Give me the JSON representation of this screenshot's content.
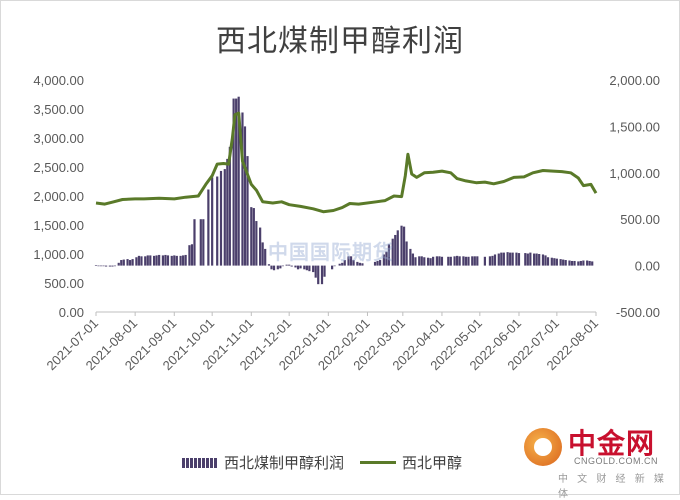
{
  "chart_data": {
    "type": "bar+line",
    "title": "西北煤制甲醇利润",
    "left_axis": {
      "min": 0,
      "max": 4000,
      "ticks": [
        "0.00",
        "500.00",
        "1,000.00",
        "1,500.00",
        "2,000.00",
        "2,500.00",
        "3,000.00",
        "3,500.00",
        "4,000.00"
      ]
    },
    "right_axis": {
      "min": -500,
      "max": 2000,
      "ticks": [
        "-500.00",
        "0.00",
        "500.00",
        "1,000.00",
        "1,500.00",
        "2,000.00"
      ]
    },
    "x_ticks": [
      "2021-07-01",
      "2021-08-01",
      "2021-09-01",
      "2021-10-01",
      "2021-11-01",
      "2021-12-01",
      "2022-01-01",
      "2022-02-01",
      "2022-03-01",
      "2022-04-01",
      "2022-05-01",
      "2022-06-01",
      "2022-07-01",
      "2022-08-01"
    ],
    "x_range": [
      "2021-07-01",
      "2022-08-01"
    ],
    "gridlines": false,
    "legend_position": "bottom",
    "series": [
      {
        "name": "西北煤制甲醇利润",
        "kind": "bar",
        "axis": "right",
        "color": "#4b3f6b",
        "points": [
          [
            "2021-07-01",
            5
          ],
          [
            "2021-07-03",
            0
          ],
          [
            "2021-07-05",
            -5
          ],
          [
            "2021-07-07",
            0
          ],
          [
            "2021-07-09",
            -10
          ],
          [
            "2021-07-12",
            -10
          ],
          [
            "2021-07-14",
            -10
          ],
          [
            "2021-07-16",
            -5
          ],
          [
            "2021-07-19",
            30
          ],
          [
            "2021-07-21",
            60
          ],
          [
            "2021-07-23",
            65
          ],
          [
            "2021-07-26",
            70
          ],
          [
            "2021-07-28",
            60
          ],
          [
            "2021-07-30",
            70
          ],
          [
            "2021-08-02",
            90
          ],
          [
            "2021-08-04",
            105
          ],
          [
            "2021-08-06",
            100
          ],
          [
            "2021-08-09",
            100
          ],
          [
            "2021-08-11",
            110
          ],
          [
            "2021-08-13",
            110
          ],
          [
            "2021-08-16",
            105
          ],
          [
            "2021-08-18",
            110
          ],
          [
            "2021-08-20",
            115
          ],
          [
            "2021-08-23",
            110
          ],
          [
            "2021-08-25",
            115
          ],
          [
            "2021-08-27",
            110
          ],
          [
            "2021-08-30",
            105
          ],
          [
            "2021-09-01",
            110
          ],
          [
            "2021-09-03",
            105
          ],
          [
            "2021-09-06",
            105
          ],
          [
            "2021-09-08",
            110
          ],
          [
            "2021-09-10",
            115
          ],
          [
            "2021-09-13",
            220
          ],
          [
            "2021-09-15",
            230
          ],
          [
            "2021-09-17",
            500
          ],
          [
            "2021-09-22",
            500
          ],
          [
            "2021-09-24",
            500
          ],
          [
            "2021-09-28",
            820
          ],
          [
            "2021-10-01",
            950
          ],
          [
            "2021-10-05",
            960
          ],
          [
            "2021-10-08",
            1020
          ],
          [
            "2021-10-11",
            1040
          ],
          [
            "2021-10-13",
            1150
          ],
          [
            "2021-10-15",
            1280
          ],
          [
            "2021-10-18",
            1800
          ],
          [
            "2021-10-20",
            1800
          ],
          [
            "2021-10-22",
            1820
          ],
          [
            "2021-10-25",
            1650
          ],
          [
            "2021-10-27",
            1500
          ],
          [
            "2021-10-29",
            1180
          ],
          [
            "2021-11-01",
            630
          ],
          [
            "2021-11-03",
            620
          ],
          [
            "2021-11-05",
            480
          ],
          [
            "2021-11-08",
            410
          ],
          [
            "2021-11-10",
            250
          ],
          [
            "2021-11-12",
            180
          ],
          [
            "2021-11-15",
            15
          ],
          [
            "2021-11-17",
            -40
          ],
          [
            "2021-11-19",
            -50
          ],
          [
            "2021-11-22",
            -40
          ],
          [
            "2021-11-24",
            -30
          ],
          [
            "2021-11-26",
            0
          ],
          [
            "2021-11-29",
            10
          ],
          [
            "2021-12-01",
            10
          ],
          [
            "2021-12-03",
            -10
          ],
          [
            "2021-12-06",
            -20
          ],
          [
            "2021-12-08",
            -40
          ],
          [
            "2021-12-10",
            -30
          ],
          [
            "2021-12-13",
            -40
          ],
          [
            "2021-12-15",
            -50
          ],
          [
            "2021-12-17",
            -60
          ],
          [
            "2021-12-20",
            -70
          ],
          [
            "2021-12-22",
            -130
          ],
          [
            "2021-12-24",
            -200
          ],
          [
            "2021-12-27",
            -200
          ],
          [
            "2021-12-29",
            -120
          ],
          [
            "2022-01-04",
            -40
          ],
          [
            "2022-01-06",
            0
          ],
          [
            "2022-01-10",
            20
          ],
          [
            "2022-01-12",
            30
          ],
          [
            "2022-01-14",
            60
          ],
          [
            "2022-01-17",
            100
          ],
          [
            "2022-01-19",
            100
          ],
          [
            "2022-01-21",
            60
          ],
          [
            "2022-01-24",
            40
          ],
          [
            "2022-01-26",
            30
          ],
          [
            "2022-01-28",
            25
          ],
          [
            "2022-02-07",
            40
          ],
          [
            "2022-02-09",
            50
          ],
          [
            "2022-02-11",
            60
          ],
          [
            "2022-02-14",
            120
          ],
          [
            "2022-02-16",
            150
          ],
          [
            "2022-02-18",
            230
          ],
          [
            "2022-02-21",
            290
          ],
          [
            "2022-02-23",
            330
          ],
          [
            "2022-02-25",
            380
          ],
          [
            "2022-02-28",
            430
          ],
          [
            "2022-03-02",
            420
          ],
          [
            "2022-03-04",
            260
          ],
          [
            "2022-03-07",
            180
          ],
          [
            "2022-03-09",
            130
          ],
          [
            "2022-03-11",
            90
          ],
          [
            "2022-03-14",
            100
          ],
          [
            "2022-03-16",
            100
          ],
          [
            "2022-03-18",
            90
          ],
          [
            "2022-03-21",
            85
          ],
          [
            "2022-03-23",
            80
          ],
          [
            "2022-03-25",
            95
          ],
          [
            "2022-03-28",
            100
          ],
          [
            "2022-03-30",
            100
          ],
          [
            "2022-04-01",
            95
          ],
          [
            "2022-04-06",
            95
          ],
          [
            "2022-04-08",
            95
          ],
          [
            "2022-04-11",
            100
          ],
          [
            "2022-04-13",
            105
          ],
          [
            "2022-04-15",
            100
          ],
          [
            "2022-04-18",
            100
          ],
          [
            "2022-04-20",
            95
          ],
          [
            "2022-04-22",
            95
          ],
          [
            "2022-04-25",
            100
          ],
          [
            "2022-04-27",
            100
          ],
          [
            "2022-04-29",
            100
          ],
          [
            "2022-05-05",
            95
          ],
          [
            "2022-05-09",
            100
          ],
          [
            "2022-05-11",
            105
          ],
          [
            "2022-05-13",
            120
          ],
          [
            "2022-05-16",
            130
          ],
          [
            "2022-05-18",
            140
          ],
          [
            "2022-05-20",
            140
          ],
          [
            "2022-05-23",
            145
          ],
          [
            "2022-05-25",
            140
          ],
          [
            "2022-05-27",
            140
          ],
          [
            "2022-05-30",
            140
          ],
          [
            "2022-06-01",
            135
          ],
          [
            "2022-06-06",
            135
          ],
          [
            "2022-06-08",
            130
          ],
          [
            "2022-06-10",
            140
          ],
          [
            "2022-06-13",
            130
          ],
          [
            "2022-06-15",
            130
          ],
          [
            "2022-06-17",
            125
          ],
          [
            "2022-06-20",
            120
          ],
          [
            "2022-06-22",
            110
          ],
          [
            "2022-06-24",
            90
          ],
          [
            "2022-06-27",
            85
          ],
          [
            "2022-06-29",
            80
          ],
          [
            "2022-07-01",
            75
          ],
          [
            "2022-07-04",
            70
          ],
          [
            "2022-07-06",
            65
          ],
          [
            "2022-07-08",
            60
          ],
          [
            "2022-07-11",
            55
          ],
          [
            "2022-07-13",
            50
          ],
          [
            "2022-07-15",
            50
          ],
          [
            "2022-07-18",
            45
          ],
          [
            "2022-07-20",
            50
          ],
          [
            "2022-07-22",
            55
          ],
          [
            "2022-07-25",
            55
          ],
          [
            "2022-07-27",
            50
          ],
          [
            "2022-07-29",
            45
          ]
        ]
      },
      {
        "name": "西北甲醇",
        "kind": "line",
        "axis": "left",
        "color": "#5a7a29",
        "points": [
          [
            "2021-07-01",
            1880
          ],
          [
            "2021-07-08",
            1860
          ],
          [
            "2021-07-15",
            1900
          ],
          [
            "2021-07-22",
            1940
          ],
          [
            "2021-08-01",
            1950
          ],
          [
            "2021-08-08",
            1950
          ],
          [
            "2021-08-20",
            1960
          ],
          [
            "2021-09-01",
            1950
          ],
          [
            "2021-09-10",
            1980
          ],
          [
            "2021-09-20",
            2000
          ],
          [
            "2021-09-26",
            2200
          ],
          [
            "2021-10-01",
            2350
          ],
          [
            "2021-10-05",
            2550
          ],
          [
            "2021-10-10",
            2560
          ],
          [
            "2021-10-14",
            2550
          ],
          [
            "2021-10-17",
            3000
          ],
          [
            "2021-10-19",
            3400
          ],
          [
            "2021-10-22",
            3430
          ],
          [
            "2021-10-25",
            2600
          ],
          [
            "2021-11-01",
            2200
          ],
          [
            "2021-11-05",
            2100
          ],
          [
            "2021-11-10",
            1900
          ],
          [
            "2021-11-18",
            1880
          ],
          [
            "2021-11-25",
            1900
          ],
          [
            "2021-12-01",
            1850
          ],
          [
            "2021-12-10",
            1820
          ],
          [
            "2021-12-20",
            1780
          ],
          [
            "2021-12-28",
            1730
          ],
          [
            "2022-01-05",
            1750
          ],
          [
            "2022-01-12",
            1800
          ],
          [
            "2022-01-18",
            1870
          ],
          [
            "2022-01-25",
            1860
          ],
          [
            "2022-02-08",
            1900
          ],
          [
            "2022-02-15",
            1920
          ],
          [
            "2022-02-22",
            2000
          ],
          [
            "2022-02-28",
            1990
          ],
          [
            "2022-03-03",
            2350
          ],
          [
            "2022-03-05",
            2720
          ],
          [
            "2022-03-08",
            2380
          ],
          [
            "2022-03-12",
            2320
          ],
          [
            "2022-03-18",
            2400
          ],
          [
            "2022-03-25",
            2410
          ],
          [
            "2022-04-01",
            2430
          ],
          [
            "2022-04-08",
            2400
          ],
          [
            "2022-04-13",
            2300
          ],
          [
            "2022-04-20",
            2260
          ],
          [
            "2022-04-28",
            2230
          ],
          [
            "2022-05-05",
            2240
          ],
          [
            "2022-05-12",
            2210
          ],
          [
            "2022-05-20",
            2250
          ],
          [
            "2022-05-28",
            2320
          ],
          [
            "2022-06-05",
            2330
          ],
          [
            "2022-06-12",
            2400
          ],
          [
            "2022-06-20",
            2440
          ],
          [
            "2022-06-28",
            2430
          ],
          [
            "2022-07-05",
            2420
          ],
          [
            "2022-07-12",
            2400
          ],
          [
            "2022-07-18",
            2310
          ],
          [
            "2022-07-22",
            2180
          ],
          [
            "2022-07-28",
            2200
          ],
          [
            "2022-08-01",
            2050
          ]
        ]
      }
    ]
  },
  "watermark": "中国国际期货",
  "brand": {
    "name": "中金网",
    "url": "CNGOLD.COM.CN",
    "sub": "中 文 财 经 新 媒 体"
  }
}
